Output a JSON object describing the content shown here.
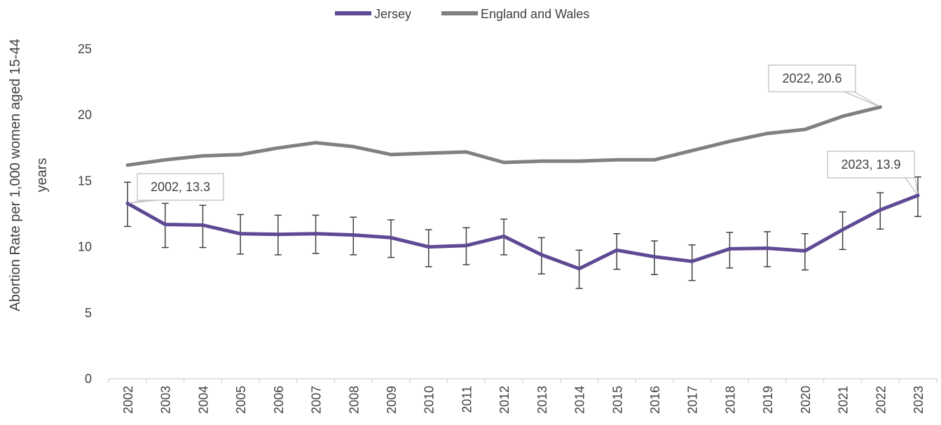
{
  "chart_data": {
    "type": "line",
    "title": "",
    "xlabel": "",
    "ylabel_line1": "Abortion Rate per 1,000 women aged 15-44",
    "ylabel_line2": "years",
    "ylim": [
      0,
      25
    ],
    "yticks": [
      "0",
      "5",
      "10",
      "15",
      "20",
      "25"
    ],
    "grid": false,
    "legend_position": "top-center",
    "categories": [
      "2002",
      "2003",
      "2004",
      "2005",
      "2006",
      "2007",
      "2008",
      "2009",
      "2010",
      "2011",
      "2012",
      "2013",
      "2014",
      "2015",
      "2016",
      "2017",
      "2018",
      "2019",
      "2020",
      "2021",
      "2022",
      "2023"
    ],
    "series": [
      {
        "name": "Jersey",
        "color": "#5e4a94",
        "values": [
          13.3,
          11.7,
          11.65,
          11.0,
          10.95,
          11.0,
          10.9,
          10.7,
          10.0,
          10.1,
          10.8,
          9.4,
          8.35,
          9.75,
          9.25,
          8.9,
          9.85,
          9.9,
          9.7,
          11.3,
          12.8,
          13.9
        ],
        "error_upper": [
          14.9,
          13.3,
          13.15,
          12.45,
          12.4,
          12.4,
          12.25,
          12.05,
          11.3,
          11.45,
          12.1,
          10.7,
          9.75,
          11.0,
          10.45,
          10.15,
          11.1,
          11.15,
          11.0,
          12.65,
          14.1,
          15.3
        ],
        "error_lower": [
          11.55,
          9.95,
          9.95,
          9.45,
          9.4,
          9.5,
          9.4,
          9.2,
          8.5,
          8.65,
          9.4,
          7.95,
          6.85,
          8.3,
          7.9,
          7.45,
          8.4,
          8.5,
          8.25,
          9.8,
          11.35,
          12.3
        ]
      },
      {
        "name": "England and Wales",
        "color": "#808080",
        "values": [
          16.2,
          16.6,
          16.9,
          17.0,
          17.5,
          17.9,
          17.6,
          17.0,
          17.1,
          17.2,
          16.4,
          16.5,
          16.5,
          16.6,
          16.6,
          17.3,
          18.0,
          18.6,
          18.9,
          19.9,
          20.6,
          null
        ]
      }
    ],
    "annotations": [
      {
        "text": "2002, 13.3",
        "series": 0,
        "index": 0
      },
      {
        "text": "2022, 20.6",
        "series": 1,
        "index": 20
      },
      {
        "text": "2023, 13.9",
        "series": 0,
        "index": 21
      }
    ]
  }
}
